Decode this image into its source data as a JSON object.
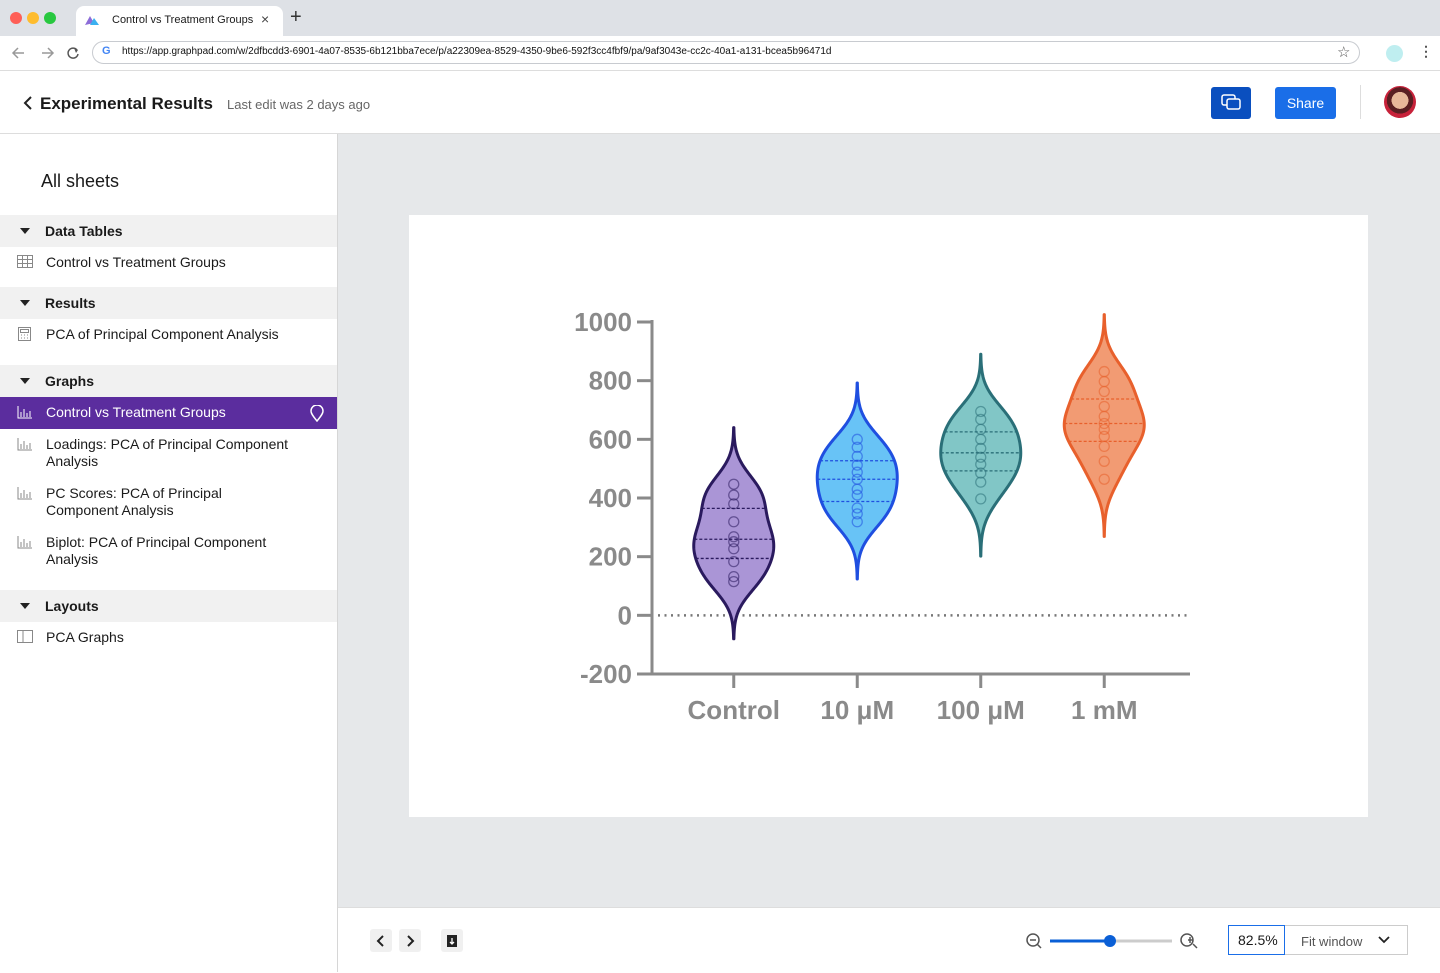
{
  "browser": {
    "tab_title": "Control vs Treatment Groups",
    "url": "https://app.graphpad.com/w/2dfbcdd3-6901-4a07-8535-6b121bba7ece/p/a22309ea-8529-4350-9be6-592f3cc4fbf9/pa/9af3043e-cc2c-40a1-a131-bcea5b96471d"
  },
  "header": {
    "title": "Experimental Results",
    "last_edit": "Last edit was 2 days ago",
    "share": "Share"
  },
  "sidebar": {
    "title": "All sheets",
    "sections": [
      {
        "name": "Data Tables",
        "items": [
          "Control vs Treatment Groups"
        ]
      },
      {
        "name": "Results",
        "items": [
          "PCA of Principal Component Analysis"
        ]
      },
      {
        "name": "Graphs",
        "items": [
          "Control vs Treatment Groups",
          "Loadings: PCA of Principal Component Analysis",
          "PC Scores: PCA of Principal Component Analysis",
          "Biplot: PCA of Principal Component Analysis"
        ]
      },
      {
        "name": "Layouts",
        "items": [
          "PCA Graphs"
        ]
      }
    ]
  },
  "footer": {
    "zoom": "82.5%",
    "fit": "Fit window"
  },
  "chart_data": {
    "type": "violin",
    "categories": [
      "Control",
      "10 μM",
      "100 μM",
      "1 mM"
    ],
    "values": [
      [
        447,
        410,
        380,
        319,
        268,
        251,
        227,
        183,
        132,
        115
      ],
      [
        600,
        573,
        542,
        512,
        488,
        464,
        430,
        410,
        366,
        346,
        319
      ],
      [
        695,
        668,
        634,
        600,
        569,
        539,
        515,
        485,
        454,
        397
      ],
      [
        831,
        797,
        763,
        712,
        678,
        654,
        634,
        610,
        576,
        525,
        464
      ]
    ],
    "colors": [
      "#9b82cf",
      "#4db8f5",
      "#6bbcbc",
      "#f08a5a"
    ],
    "edge_colors": [
      "#2a1a5e",
      "#1f4fe0",
      "#2a6f78",
      "#e8602c"
    ],
    "ylim": [
      -200,
      1000
    ],
    "yticks": [
      -200,
      0,
      200,
      400,
      600,
      800,
      1000
    ],
    "hline": 0
  }
}
